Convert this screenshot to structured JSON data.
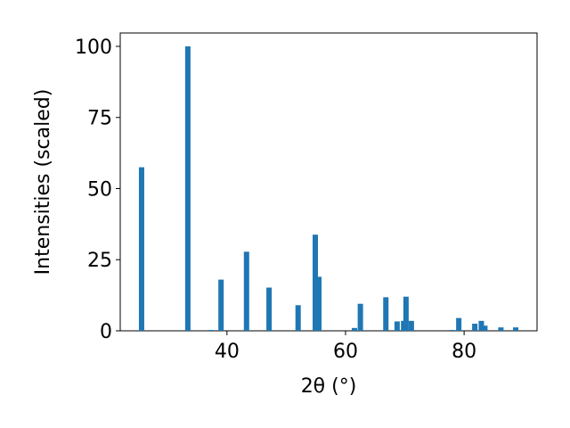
{
  "chart_data": {
    "type": "bar",
    "xlabel": "2θ (°)",
    "ylabel": "Intensities (scaled)",
    "x": [
      25.6,
      33.4,
      37.3,
      39.0,
      43.3,
      47.1,
      52.0,
      54.9,
      55.5,
      61.5,
      62.5,
      66.8,
      68.7,
      69.8,
      70.2,
      71.1,
      78.0,
      79.1,
      81.8,
      82.9,
      83.5,
      86.2,
      88.7
    ],
    "values": [
      57.5,
      100,
      0.3,
      18,
      27.8,
      15.2,
      9,
      33.8,
      19,
      1,
      9.5,
      11.8,
      3.3,
      3.5,
      12,
      3.5,
      0.3,
      4.5,
      2.5,
      3.5,
      1.8,
      1.2,
      1.2
    ],
    "color": "#1f77b4",
    "xlim": [
      22,
      92.3
    ],
    "xticks": [
      40,
      60,
      80
    ],
    "ylim": [
      0,
      104.7
    ],
    "yticks": [
      0,
      25,
      50,
      75,
      100
    ]
  }
}
